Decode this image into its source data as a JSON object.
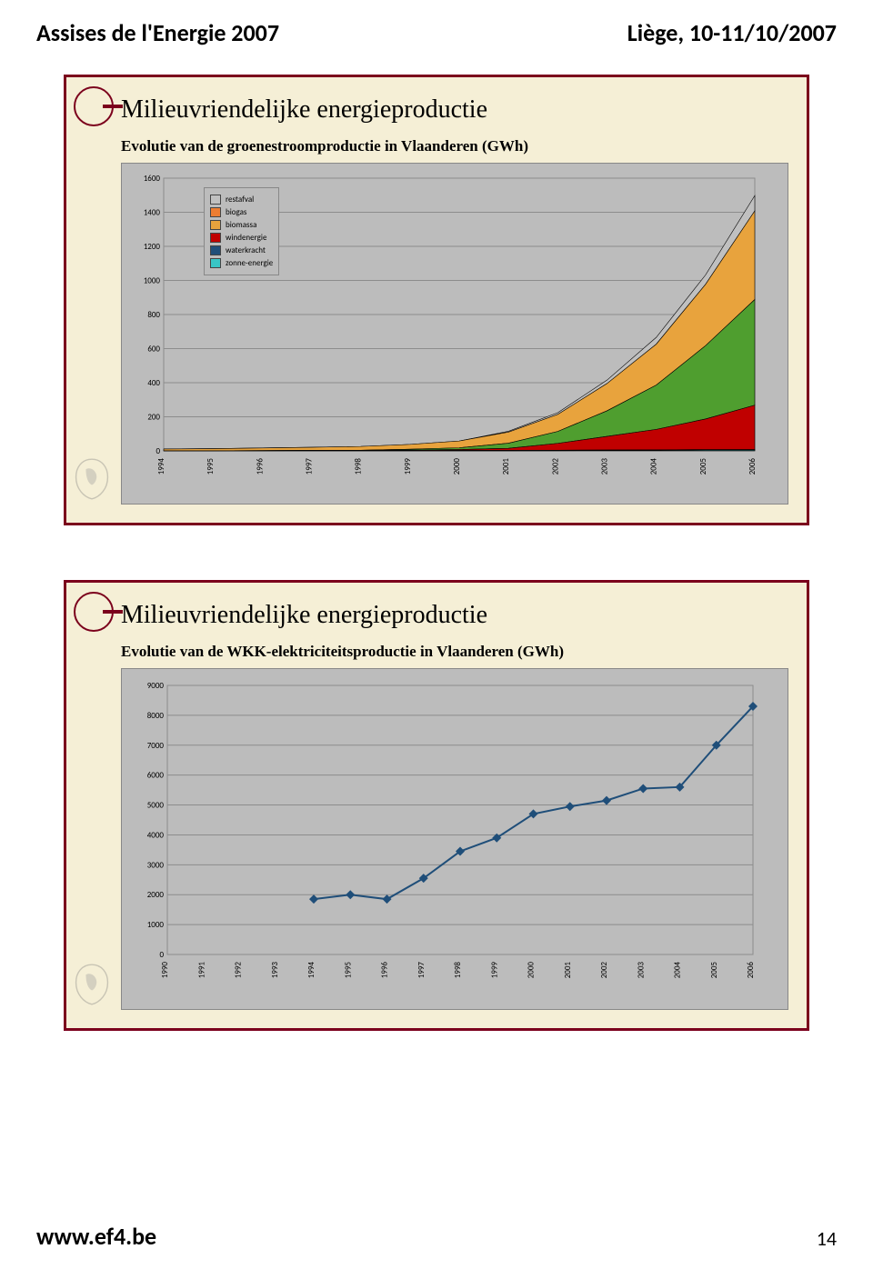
{
  "header": {
    "left": "Assises de l'Energie 2007",
    "right": "Liège, 10-11/10/2007"
  },
  "footer": {
    "url": "www.ef4.be",
    "page": "14"
  },
  "slide1": {
    "title": "Milieuvriendelijke energieproductie",
    "subtitle": "Evolutie van de groenestroomproductie in Vlaanderen (GWh)",
    "chart": {
      "type": "stacked-area",
      "ylim": [
        0,
        1600
      ],
      "ytick_step": 200,
      "yticks": [
        "0",
        "200",
        "400",
        "600",
        "800",
        "1000",
        "1200",
        "1400",
        "1600"
      ],
      "xlabels": [
        "1994",
        "1995",
        "1996",
        "1997",
        "1998",
        "1999",
        "2000",
        "2001",
        "2002",
        "2003",
        "2004",
        "2005",
        "2006"
      ],
      "plot_bg": "#bcbcbc",
      "grid_color": "#8c8c8c",
      "legend": [
        {
          "label": "restafval",
          "color": "#c0c0c0"
        },
        {
          "label": "biogas",
          "color": "#ed7d31"
        },
        {
          "label": "biomassa",
          "color": "#e8a33d"
        },
        {
          "label": "windenergie",
          "color": "#c00000"
        },
        {
          "label": "waterkracht",
          "color": "#1f4e79"
        },
        {
          "label": "zonne-energie",
          "color": "#39c6c6"
        }
      ],
      "series": {
        "zonne": [
          0,
          0,
          0,
          0,
          0,
          0,
          0,
          0,
          1,
          2,
          3,
          4,
          5
        ],
        "waterkracht": [
          1,
          1,
          1,
          2,
          2,
          2,
          3,
          3,
          3,
          3,
          3,
          3,
          3
        ],
        "wind": [
          0,
          0,
          1,
          1,
          2,
          3,
          5,
          12,
          40,
          80,
          120,
          180,
          260
        ],
        "biomassa": [
          0,
          0,
          0,
          0,
          0,
          5,
          10,
          30,
          70,
          150,
          260,
          430,
          620
        ],
        "biogas": [
          10,
          12,
          15,
          18,
          22,
          28,
          40,
          65,
          100,
          160,
          240,
          360,
          520
        ],
        "restafval": [
          0,
          0,
          0,
          0,
          0,
          0,
          0,
          5,
          10,
          20,
          40,
          55,
          90
        ]
      }
    }
  },
  "slide2": {
    "title": "Milieuvriendelijke energieproductie",
    "subtitle": "Evolutie van de WKK-elektriciteitsproductie in Vlaanderen (GWh)",
    "chart": {
      "type": "line",
      "ylim": [
        0,
        9000
      ],
      "ytick_step": 1000,
      "yticks": [
        "0",
        "1000",
        "2000",
        "3000",
        "4000",
        "5000",
        "6000",
        "7000",
        "8000",
        "9000"
      ],
      "xlabels": [
        "1990",
        "1991",
        "1992",
        "1993",
        "1994",
        "1995",
        "1996",
        "1997",
        "1998",
        "1999",
        "2000",
        "2001",
        "2002",
        "2003",
        "2004",
        "2005",
        "2006"
      ],
      "plot_bg": "#bcbcbc",
      "grid_color": "#8c8c8c",
      "line_color": "#1f4e79",
      "marker_color": "#1f4e79",
      "values": [
        null,
        null,
        null,
        null,
        1850,
        2000,
        1850,
        2550,
        3450,
        3900,
        4700,
        4950,
        5150,
        5550,
        5600,
        7000,
        8300
      ]
    }
  }
}
